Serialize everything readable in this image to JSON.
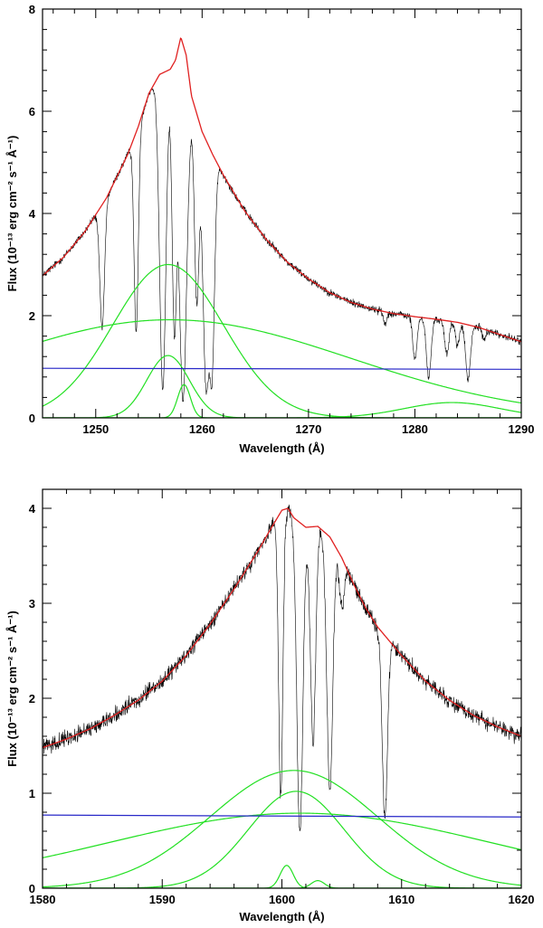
{
  "chart_data": [
    {
      "type": "line",
      "panel": "top",
      "xlabel": "Wavelength (Å)",
      "ylabel": "Flux (10⁻¹³ erg cm⁻² s⁻¹ Å⁻¹)",
      "xlim": [
        1245,
        1290
      ],
      "ylim": [
        0,
        8
      ],
      "xticks": [
        1250,
        1260,
        1270,
        1280,
        1290
      ],
      "xtick_labels": [
        "1250",
        "1260",
        "1270",
        "1280",
        "1290"
      ],
      "yticks": [
        0,
        2,
        4,
        6,
        8
      ],
      "ytick_labels": [
        "0",
        "2",
        "4",
        "6",
        "8"
      ],
      "colors": {
        "data": "#000000",
        "total_fit": "#e02020",
        "components": "#22e022",
        "continuum": "#2828c8"
      },
      "continuum": {
        "name": "continuum",
        "points": [
          [
            1245,
            0.97
          ],
          [
            1290,
            0.95
          ]
        ]
      },
      "components": [
        {
          "name": "broad component",
          "amp": 1.92,
          "center": 1257.0,
          "sigma": 17.0
        },
        {
          "name": "intermediate component",
          "amp": 3.0,
          "center": 1256.8,
          "sigma": 5.2
        },
        {
          "name": "narrow component",
          "amp": 1.22,
          "center": 1256.8,
          "sigma": 2.0
        },
        {
          "name": "narrow peak component",
          "amp": 0.65,
          "center": 1258.3,
          "sigma": 0.6
        },
        {
          "name": "red wing component",
          "amp": 0.3,
          "center": 1283.5,
          "sigma": 4.5
        }
      ],
      "total_fit": {
        "name": "total model",
        "points": [
          [
            1245,
            2.78
          ],
          [
            1247,
            3.15
          ],
          [
            1249,
            3.65
          ],
          [
            1251,
            4.3
          ],
          [
            1253,
            5.15
          ],
          [
            1254,
            5.7
          ],
          [
            1255,
            6.35
          ],
          [
            1256,
            6.72
          ],
          [
            1257,
            6.82
          ],
          [
            1257.5,
            7.0
          ],
          [
            1258,
            7.45
          ],
          [
            1258.5,
            7.1
          ],
          [
            1259,
            6.3
          ],
          [
            1260,
            5.6
          ],
          [
            1261,
            5.15
          ],
          [
            1262,
            4.75
          ],
          [
            1264,
            4.05
          ],
          [
            1266,
            3.5
          ],
          [
            1268,
            3.05
          ],
          [
            1270,
            2.72
          ],
          [
            1272,
            2.45
          ],
          [
            1274,
            2.26
          ],
          [
            1276,
            2.13
          ],
          [
            1278,
            2.04
          ],
          [
            1280,
            1.98
          ],
          [
            1282,
            1.93
          ],
          [
            1284,
            1.87
          ],
          [
            1286,
            1.77
          ],
          [
            1288,
            1.63
          ],
          [
            1290,
            1.49
          ]
        ]
      },
      "absorption_lines": [
        {
          "wavelength": 1250.6,
          "depth": 0.58,
          "width": 0.22
        },
        {
          "wavelength": 1253.8,
          "depth": 0.7,
          "width": 0.2
        },
        {
          "wavelength": 1256.3,
          "depth": 0.92,
          "width": 0.3
        },
        {
          "wavelength": 1257.4,
          "depth": 0.75,
          "width": 0.22
        },
        {
          "wavelength": 1258.2,
          "depth": 0.95,
          "width": 0.38
        },
        {
          "wavelength": 1259.5,
          "depth": 0.62,
          "width": 0.22
        },
        {
          "wavelength": 1260.4,
          "depth": 0.9,
          "width": 0.32
        },
        {
          "wavelength": 1260.9,
          "depth": 0.85,
          "width": 0.25
        },
        {
          "wavelength": 1277.2,
          "depth": 0.12,
          "width": 0.15
        },
        {
          "wavelength": 1280.0,
          "depth": 0.42,
          "width": 0.2
        },
        {
          "wavelength": 1281.3,
          "depth": 0.6,
          "width": 0.22
        },
        {
          "wavelength": 1283.0,
          "depth": 0.35,
          "width": 0.2
        },
        {
          "wavelength": 1284.0,
          "depth": 0.25,
          "width": 0.18
        },
        {
          "wavelength": 1285.0,
          "depth": 0.6,
          "width": 0.22
        },
        {
          "wavelength": 1286.5,
          "depth": 0.12,
          "width": 0.15
        }
      ],
      "noise_amplitude": 0.045
    },
    {
      "type": "line",
      "panel": "bottom",
      "xlabel": "Wavelength (Å)",
      "ylabel": "Flux (10⁻¹³ erg cm⁻² s⁻¹ Å⁻¹)",
      "xlim": [
        1580,
        1620
      ],
      "ylim": [
        0,
        4.2
      ],
      "xticks": [
        1580,
        1590,
        1600,
        1610,
        1620
      ],
      "xtick_labels": [
        "1580",
        "1590",
        "1600",
        "1610",
        "1620"
      ],
      "yticks": [
        0,
        1,
        2,
        3,
        4
      ],
      "ytick_labels": [
        "0",
        "1",
        "2",
        "3",
        "4"
      ],
      "colors": {
        "data": "#000000",
        "total_fit": "#e02020",
        "components": "#22e022",
        "continuum": "#2828c8"
      },
      "continuum": {
        "name": "continuum",
        "points": [
          [
            1580,
            0.77
          ],
          [
            1620,
            0.75
          ]
        ]
      },
      "components": [
        {
          "name": "broad component",
          "amp": 0.79,
          "center": 1601.5,
          "sigma": 16.0
        },
        {
          "name": "intermediate component",
          "amp": 1.24,
          "center": 1601.0,
          "sigma": 7.0
        },
        {
          "name": "narrow component",
          "amp": 1.02,
          "center": 1601.2,
          "sigma": 4.0
        },
        {
          "name": "narrow peak component",
          "amp": 0.24,
          "center": 1600.4,
          "sigma": 0.55
        },
        {
          "name": "narrow peak component 2",
          "amp": 0.08,
          "center": 1603.0,
          "sigma": 0.55
        }
      ],
      "total_fit": {
        "name": "total model",
        "points": [
          [
            1580,
            1.48
          ],
          [
            1582,
            1.57
          ],
          [
            1584,
            1.68
          ],
          [
            1586,
            1.82
          ],
          [
            1588,
            1.98
          ],
          [
            1590,
            2.18
          ],
          [
            1592,
            2.45
          ],
          [
            1594,
            2.78
          ],
          [
            1596,
            3.15
          ],
          [
            1598,
            3.55
          ],
          [
            1599,
            3.77
          ],
          [
            1600,
            3.98
          ],
          [
            1600.5,
            4.0
          ],
          [
            1601,
            3.9
          ],
          [
            1602,
            3.8
          ],
          [
            1603,
            3.81
          ],
          [
            1604,
            3.7
          ],
          [
            1605,
            3.48
          ],
          [
            1606,
            3.2
          ],
          [
            1607,
            2.95
          ],
          [
            1608,
            2.75
          ],
          [
            1610,
            2.45
          ],
          [
            1612,
            2.18
          ],
          [
            1614,
            1.98
          ],
          [
            1616,
            1.82
          ],
          [
            1618,
            1.7
          ],
          [
            1620,
            1.6
          ]
        ]
      },
      "absorption_lines": [
        {
          "wavelength": 1599.9,
          "depth": 0.75,
          "width": 0.18
        },
        {
          "wavelength": 1601.5,
          "depth": 0.85,
          "width": 0.25
        },
        {
          "wavelength": 1602.6,
          "depth": 0.6,
          "width": 0.22
        },
        {
          "wavelength": 1604.0,
          "depth": 0.72,
          "width": 0.25
        },
        {
          "wavelength": 1605.0,
          "depth": 0.15,
          "width": 0.2
        },
        {
          "wavelength": 1608.6,
          "depth": 0.72,
          "width": 0.22
        }
      ],
      "noise_amplitude": 0.05
    }
  ]
}
